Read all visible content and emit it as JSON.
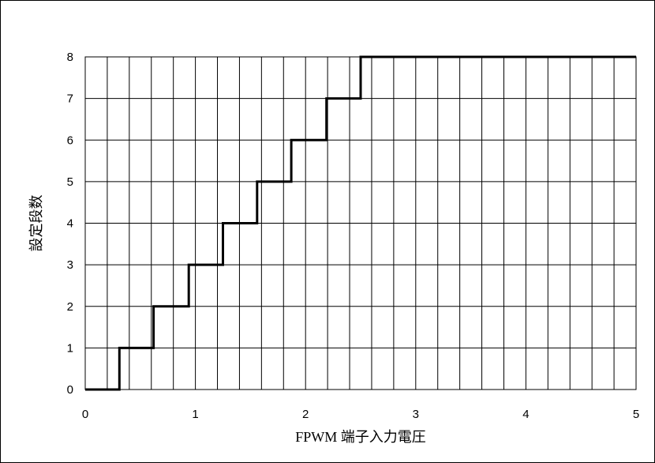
{
  "chart_data": {
    "type": "line",
    "step": true,
    "xlabel": "FPWM 端子入力電圧",
    "ylabel": "設定段数",
    "xlim": [
      0,
      5
    ],
    "ylim": [
      0,
      8
    ],
    "x_ticks": [
      0,
      1,
      2,
      3,
      4,
      5
    ],
    "y_ticks": [
      0,
      1,
      2,
      3,
      4,
      5,
      6,
      7,
      8
    ],
    "x_tick_labels": [
      "0",
      "1",
      "2",
      "3",
      "4",
      "5"
    ],
    "y_tick_labels": [
      "0",
      "1",
      "2",
      "3",
      "4",
      "5",
      "6",
      "7",
      "8"
    ],
    "grid": true,
    "x_grid_step": 0.2,
    "y_grid_step": 1,
    "series": [
      {
        "x": [
          0,
          0.31,
          0.31,
          0.62,
          0.62,
          0.94,
          0.94,
          1.25,
          1.25,
          1.56,
          1.56,
          1.87,
          1.87,
          2.19,
          2.19,
          2.5,
          2.5,
          5
        ],
        "y": [
          0,
          0,
          1,
          1,
          2,
          2,
          3,
          3,
          4,
          4,
          5,
          5,
          6,
          6,
          7,
          7,
          8,
          8
        ]
      }
    ]
  }
}
